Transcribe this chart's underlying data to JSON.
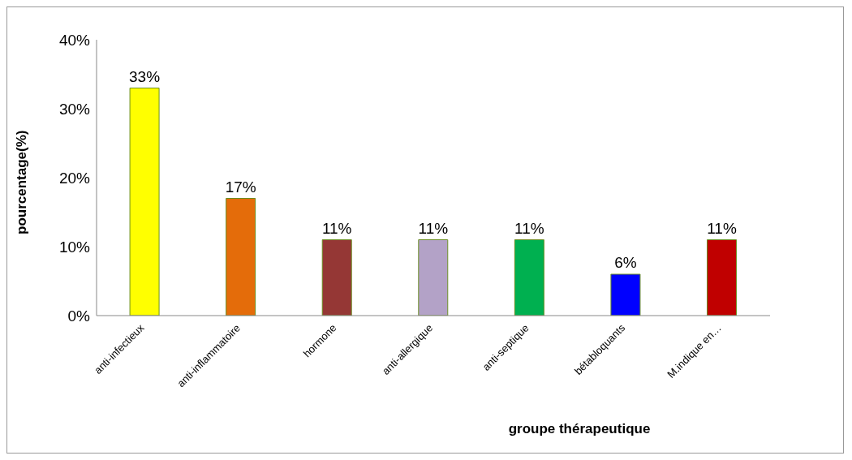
{
  "chart_data": {
    "type": "bar",
    "xlabel": "groupe thérapeutique",
    "ylabel": "pourcentage(%)",
    "categories": [
      "anti-infectieux",
      "anti-inflammatoire",
      "hormone",
      "anti-allergique",
      "anti-septique",
      "bétabloquants",
      "M.indique en…"
    ],
    "values": [
      33,
      17,
      11,
      11,
      11,
      6,
      11
    ],
    "colors": [
      "#ffff00",
      "#e46c0a",
      "#953735",
      "#b3a2c7",
      "#00b050",
      "#0000ff",
      "#c00000"
    ],
    "value_labels": [
      "33%",
      "17%",
      "11%",
      "11%",
      "11%",
      "6%",
      "11%"
    ],
    "ylim": [
      0,
      40
    ],
    "yticks": [
      {
        "value": 0,
        "label": "0%"
      },
      {
        "value": 10,
        "label": "10%"
      },
      {
        "value": 20,
        "label": "20%"
      },
      {
        "value": 30,
        "label": "30%"
      },
      {
        "value": 40,
        "label": "40%"
      }
    ],
    "grid": false
  }
}
